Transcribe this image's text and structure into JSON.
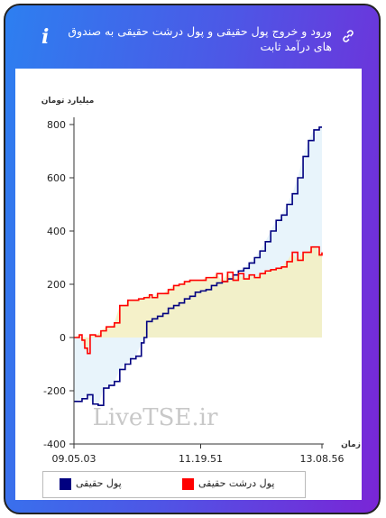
{
  "header": {
    "title": "ورود و خروج پول حقیقی و پول درشت حقیقی به صندوق های درآمد ثابت",
    "info_glyph": "i"
  },
  "watermark": "LiveTSE.ir",
  "legend": {
    "items": [
      {
        "label": "پول حقیقی",
        "color": "#000080"
      },
      {
        "label": "پول درشت حقیقی",
        "color": "#ff0000"
      }
    ]
  },
  "colors": {
    "blue_fill": "#e8f4fb",
    "red_fill": "#f3efbf"
  },
  "chart_data": {
    "type": "area",
    "ylabel": "میلیارد تومان",
    "xlabel": "زمان",
    "ylim": [
      -400,
      800
    ],
    "yticks": [
      -400,
      -200,
      0,
      200,
      400,
      600,
      800
    ],
    "xticks": [
      "09.05.03",
      "11.19.51",
      "13.08.56"
    ],
    "series": [
      {
        "name": "پول حقیقی",
        "color": "#000080",
        "values": [
          [
            0,
            -240
          ],
          [
            3,
            -230
          ],
          [
            5,
            -215
          ],
          [
            7,
            -250
          ],
          [
            9,
            -255
          ],
          [
            11,
            -190
          ],
          [
            13,
            -180
          ],
          [
            15,
            -165
          ],
          [
            17,
            -120
          ],
          [
            19,
            -100
          ],
          [
            21,
            -80
          ],
          [
            23,
            -70
          ],
          [
            25,
            -20
          ],
          [
            26,
            0
          ],
          [
            27,
            60
          ],
          [
            29,
            70
          ],
          [
            31,
            80
          ],
          [
            33,
            90
          ],
          [
            35,
            110
          ],
          [
            37,
            120
          ],
          [
            39,
            130
          ],
          [
            41,
            145
          ],
          [
            43,
            155
          ],
          [
            45,
            170
          ],
          [
            47,
            175
          ],
          [
            49,
            180
          ],
          [
            51,
            195
          ],
          [
            53,
            205
          ],
          [
            55,
            210
          ],
          [
            57,
            220
          ],
          [
            59,
            235
          ],
          [
            61,
            250
          ],
          [
            63,
            260
          ],
          [
            65,
            280
          ],
          [
            67,
            300
          ],
          [
            69,
            325
          ],
          [
            71,
            360
          ],
          [
            73,
            400
          ],
          [
            75,
            440
          ],
          [
            77,
            460
          ],
          [
            79,
            500
          ],
          [
            81,
            540
          ],
          [
            83,
            600
          ],
          [
            85,
            680
          ],
          [
            87,
            740
          ],
          [
            89,
            780
          ],
          [
            91,
            790
          ],
          [
            92,
            790
          ]
        ]
      },
      {
        "name": "پول درشت حقیقی",
        "color": "#ff0000",
        "values": [
          [
            0,
            0
          ],
          [
            2,
            10
          ],
          [
            3,
            -10
          ],
          [
            4,
            -40
          ],
          [
            5,
            -60
          ],
          [
            6,
            10
          ],
          [
            8,
            5
          ],
          [
            10,
            25
          ],
          [
            12,
            40
          ],
          [
            14,
            40
          ],
          [
            15,
            55
          ],
          [
            17,
            120
          ],
          [
            19,
            120
          ],
          [
            20,
            140
          ],
          [
            22,
            140
          ],
          [
            24,
            145
          ],
          [
            26,
            150
          ],
          [
            28,
            160
          ],
          [
            29,
            150
          ],
          [
            31,
            165
          ],
          [
            33,
            165
          ],
          [
            35,
            180
          ],
          [
            37,
            195
          ],
          [
            39,
            200
          ],
          [
            41,
            210
          ],
          [
            43,
            215
          ],
          [
            45,
            215
          ],
          [
            47,
            215
          ],
          [
            49,
            225
          ],
          [
            51,
            225
          ],
          [
            53,
            240
          ],
          [
            55,
            210
          ],
          [
            57,
            245
          ],
          [
            59,
            215
          ],
          [
            61,
            240
          ],
          [
            63,
            220
          ],
          [
            65,
            235
          ],
          [
            67,
            225
          ],
          [
            69,
            240
          ],
          [
            71,
            250
          ],
          [
            73,
            255
          ],
          [
            75,
            260
          ],
          [
            77,
            265
          ],
          [
            79,
            285
          ],
          [
            81,
            320
          ],
          [
            83,
            290
          ],
          [
            85,
            320
          ],
          [
            87,
            320
          ],
          [
            88,
            340
          ],
          [
            90,
            340
          ],
          [
            91,
            310
          ],
          [
            92,
            320
          ]
        ]
      }
    ],
    "grid": false,
    "legend_position": "bottom"
  }
}
